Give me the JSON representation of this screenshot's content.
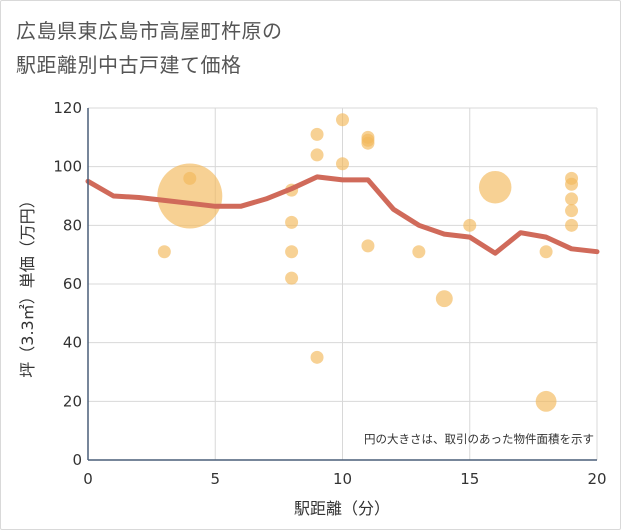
{
  "chart_data": {
    "type": "scatter",
    "title_lines": [
      "広島県東広島市高屋町杵原の",
      "駅距離別中古戸建て価格"
    ],
    "xlabel": "駅距離（分）",
    "ylabel": "坪（3.3㎡）単価（万円）",
    "xlim": [
      0,
      20
    ],
    "ylim": [
      0,
      120
    ],
    "x_ticks": [
      0,
      5,
      10,
      15,
      20
    ],
    "y_ticks": [
      0,
      20,
      40,
      60,
      80,
      100,
      120
    ],
    "grid": true,
    "note": "円の大きさは、取引のあった物件面積を示す",
    "colors": {
      "point": "#f3b95a",
      "line": "#d06a5a",
      "grid": "#d8d8d8",
      "axis": "#4a5e78"
    },
    "points": [
      {
        "x": 3,
        "y": 71,
        "size": 1
      },
      {
        "x": 4,
        "y": 90,
        "size": 5
      },
      {
        "x": 4,
        "y": 96,
        "size": 1
      },
      {
        "x": 8,
        "y": 92,
        "size": 1
      },
      {
        "x": 8,
        "y": 81,
        "size": 1
      },
      {
        "x": 8,
        "y": 71,
        "size": 1
      },
      {
        "x": 8,
        "y": 62,
        "size": 1
      },
      {
        "x": 9,
        "y": 111,
        "size": 1
      },
      {
        "x": 9,
        "y": 104,
        "size": 1
      },
      {
        "x": 9,
        "y": 35,
        "size": 1
      },
      {
        "x": 10,
        "y": 116,
        "size": 1
      },
      {
        "x": 10,
        "y": 101,
        "size": 1
      },
      {
        "x": 11,
        "y": 110,
        "size": 1
      },
      {
        "x": 11,
        "y": 109,
        "size": 1
      },
      {
        "x": 11,
        "y": 108,
        "size": 1
      },
      {
        "x": 11,
        "y": 73,
        "size": 1
      },
      {
        "x": 13,
        "y": 71,
        "size": 1
      },
      {
        "x": 14,
        "y": 55,
        "size": 1.3
      },
      {
        "x": 15,
        "y": 80,
        "size": 1
      },
      {
        "x": 16,
        "y": 93,
        "size": 2.5
      },
      {
        "x": 18,
        "y": 71,
        "size": 1
      },
      {
        "x": 18,
        "y": 20,
        "size": 1.6
      },
      {
        "x": 19,
        "y": 96,
        "size": 1
      },
      {
        "x": 19,
        "y": 94,
        "size": 1
      },
      {
        "x": 19,
        "y": 89,
        "size": 1
      },
      {
        "x": 19,
        "y": 85,
        "size": 1
      },
      {
        "x": 19,
        "y": 80,
        "size": 1
      }
    ],
    "trend": [
      {
        "x": 0,
        "y": 95
      },
      {
        "x": 1,
        "y": 90
      },
      {
        "x": 2,
        "y": 89.5
      },
      {
        "x": 3,
        "y": 88.5
      },
      {
        "x": 4,
        "y": 87.5
      },
      {
        "x": 5,
        "y": 86.5
      },
      {
        "x": 6,
        "y": 86.5
      },
      {
        "x": 7,
        "y": 89
      },
      {
        "x": 8,
        "y": 92.5
      },
      {
        "x": 9,
        "y": 96.5
      },
      {
        "x": 10,
        "y": 95.5
      },
      {
        "x": 11,
        "y": 95.5
      },
      {
        "x": 12,
        "y": 85.5
      },
      {
        "x": 13,
        "y": 80
      },
      {
        "x": 14,
        "y": 77
      },
      {
        "x": 15,
        "y": 76
      },
      {
        "x": 16,
        "y": 70.5
      },
      {
        "x": 17,
        "y": 77.5
      },
      {
        "x": 18,
        "y": 76
      },
      {
        "x": 19,
        "y": 72
      },
      {
        "x": 20,
        "y": 71
      }
    ]
  }
}
